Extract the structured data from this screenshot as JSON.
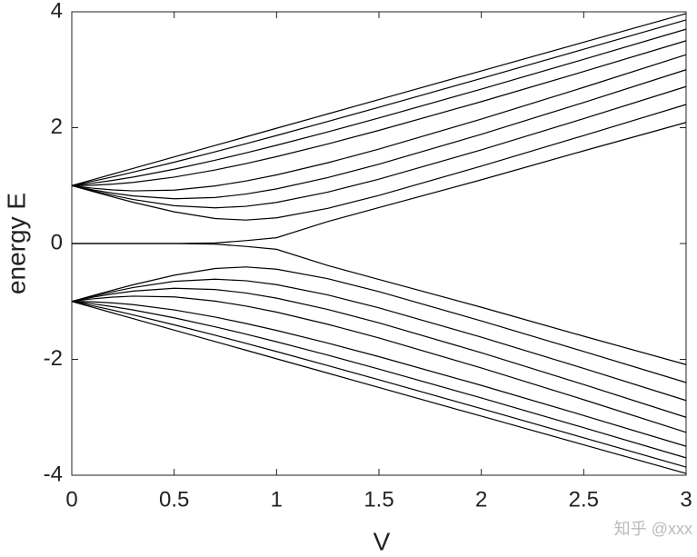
{
  "chart_data": {
    "type": "line",
    "x_label": "V",
    "y_label": "energy E",
    "watermark": "知乎 @xxx",
    "xlim": [
      0,
      3
    ],
    "ylim": [
      -4,
      4
    ],
    "xticks": [
      0,
      0.5,
      1,
      1.5,
      2,
      2.5,
      3
    ],
    "yticks": [
      4,
      2,
      0,
      -2,
      -4
    ],
    "x": [
      0,
      0.05,
      0.1,
      0.2,
      0.3,
      0.5,
      0.7,
      0.85,
      1,
      1.25,
      1.5,
      2,
      2.5,
      3
    ],
    "series": [
      {
        "color": "#000000",
        "values": [
          1,
          1.05,
          1.099,
          1.198,
          1.297,
          1.495,
          1.693,
          1.841,
          1.99,
          2.237,
          2.485,
          2.98,
          3.475,
          3.97
        ]
      },
      {
        "color": "#000000",
        "values": [
          1,
          1.036,
          1.073,
          1.15,
          1.232,
          1.404,
          1.584,
          1.723,
          1.865,
          2.107,
          2.352,
          2.85,
          3.354,
          3.86
        ]
      },
      {
        "color": "#000000",
        "values": [
          1,
          1.019,
          1.04,
          1.09,
          1.147,
          1.282,
          1.438,
          1.564,
          1.696,
          1.927,
          2.167,
          2.666,
          3.179,
          3.7
        ]
      },
      {
        "color": "#000000",
        "values": [
          1,
          1.002,
          1.006,
          1.025,
          1.055,
          1.146,
          1.27,
          1.38,
          1.5,
          1.719,
          1.953,
          2.449,
          2.969,
          3.5
        ]
      },
      {
        "color": "#000000",
        "values": [
          1,
          0.976,
          0.956,
          0.925,
          0.909,
          0.922,
          0.994,
          1.079,
          1.184,
          1.394,
          1.63,
          2.148,
          2.696,
          3.26
        ]
      },
      {
        "color": "#000000",
        "values": [
          1,
          0.964,
          0.929,
          0.869,
          0.822,
          0.773,
          0.794,
          0.854,
          0.943,
          1.138,
          1.369,
          1.886,
          2.435,
          3.0
        ]
      },
      {
        "color": "#000000",
        "values": [
          1,
          0.956,
          0.913,
          0.832,
          0.76,
          0.653,
          0.616,
          0.642,
          0.71,
          0.887,
          1.111,
          1.617,
          2.156,
          2.71
        ]
      },
      {
        "color": "#000000",
        "values": [
          1,
          0.95,
          0.901,
          0.805,
          0.712,
          0.547,
          0.431,
          0.405,
          0.443,
          0.607,
          0.831,
          1.336,
          1.864,
          2.4
        ]
      },
      {
        "color": "#000000",
        "values": [
          0,
          0,
          0,
          0,
          0,
          0,
          0.01,
          0.05,
          0.1,
          0.38,
          0.62,
          1.1,
          1.6,
          2.09
        ]
      },
      {
        "color": "#000000",
        "values": [
          0,
          0,
          0,
          0,
          0,
          0,
          -0.01,
          -0.05,
          -0.1,
          -0.38,
          -0.62,
          -1.1,
          -1.6,
          -2.09
        ]
      },
      {
        "color": "#000000",
        "values": [
          -1,
          -0.95,
          -0.901,
          -0.805,
          -0.712,
          -0.547,
          -0.431,
          -0.405,
          -0.443,
          -0.607,
          -0.831,
          -1.336,
          -1.864,
          -2.4
        ]
      },
      {
        "color": "#000000",
        "values": [
          -1,
          -0.956,
          -0.913,
          -0.832,
          -0.76,
          -0.653,
          -0.616,
          -0.642,
          -0.71,
          -0.887,
          -1.111,
          -1.617,
          -2.156,
          -2.71
        ]
      },
      {
        "color": "#000000",
        "values": [
          -1,
          -0.964,
          -0.929,
          -0.869,
          -0.822,
          -0.773,
          -0.794,
          -0.854,
          -0.943,
          -1.138,
          -1.369,
          -1.886,
          -2.435,
          -3.0
        ]
      },
      {
        "color": "#000000",
        "values": [
          -1,
          -0.976,
          -0.956,
          -0.925,
          -0.909,
          -0.922,
          -0.994,
          -1.079,
          -1.184,
          -1.394,
          -1.63,
          -2.148,
          -2.696,
          -3.26
        ]
      },
      {
        "color": "#000000",
        "values": [
          -1,
          -1.002,
          -1.006,
          -1.025,
          -1.055,
          -1.146,
          -1.27,
          -1.38,
          -1.5,
          -1.719,
          -1.953,
          -2.449,
          -2.969,
          -3.5
        ]
      },
      {
        "color": "#000000",
        "values": [
          -1,
          -1.019,
          -1.04,
          -1.09,
          -1.147,
          -1.282,
          -1.438,
          -1.564,
          -1.696,
          -1.927,
          -2.167,
          -2.666,
          -3.179,
          -3.7
        ]
      },
      {
        "color": "#000000",
        "values": [
          -1,
          -1.036,
          -1.073,
          -1.15,
          -1.232,
          -1.404,
          -1.584,
          -1.723,
          -1.865,
          -2.107,
          -2.352,
          -2.85,
          -3.354,
          -3.86
        ]
      },
      {
        "color": "#000000",
        "values": [
          -1,
          -1.05,
          -1.099,
          -1.198,
          -1.297,
          -1.495,
          -1.693,
          -1.841,
          -1.99,
          -2.237,
          -2.485,
          -2.98,
          -3.475,
          -3.97
        ]
      }
    ]
  }
}
